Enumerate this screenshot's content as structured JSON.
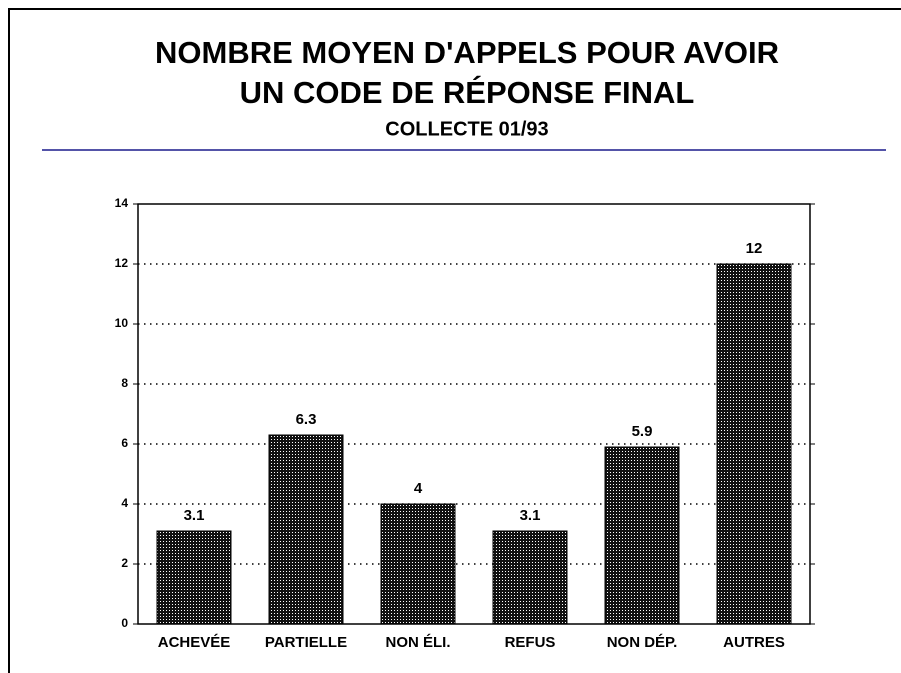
{
  "chart_data": {
    "type": "bar",
    "title": [
      "NOMBRE MOYEN D'APPELS POUR AVOIR",
      "UN CODE DE RÉPONSE FINAL"
    ],
    "subtitle": "COLLECTE 01/93",
    "categories": [
      "ACHEVÉE",
      "PARTIELLE",
      "NON ÉLI.",
      "REFUS",
      "NON DÉP.",
      "AUTRES"
    ],
    "values": [
      3.1,
      6.3,
      4,
      3.1,
      5.9,
      12
    ],
    "color": "#000000",
    "ylim": [
      0,
      14
    ],
    "yticks": [
      0,
      2,
      4,
      6,
      8,
      10,
      12,
      14
    ],
    "grid": true
  }
}
